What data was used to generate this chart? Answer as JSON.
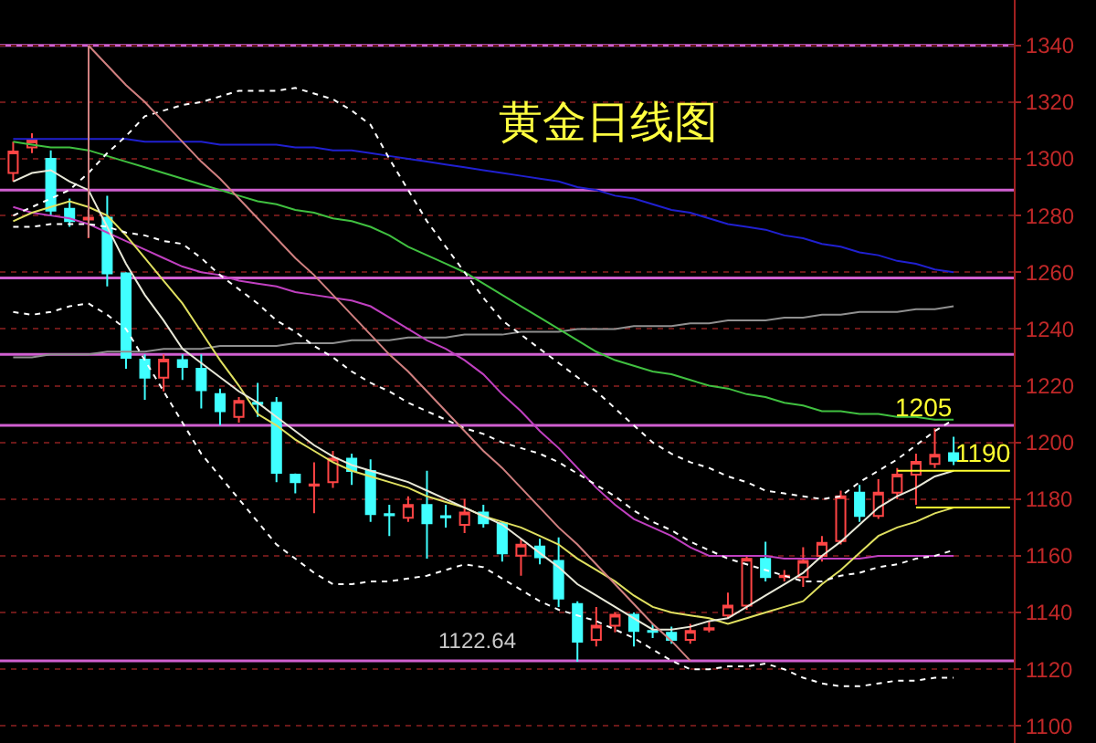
{
  "chart_data": {
    "type": "candlestick",
    "title": "黄金日线图",
    "categories": [
      null,
      null,
      null,
      null,
      null,
      null,
      null,
      null,
      null,
      null,
      null,
      null,
      null,
      null,
      null,
      null,
      null,
      null,
      null,
      null,
      null,
      null,
      null,
      null,
      null,
      null,
      null,
      null,
      null,
      null,
      null,
      null,
      null,
      null,
      null,
      null,
      null,
      null,
      null,
      null,
      null,
      null,
      null,
      null,
      null,
      null,
      null,
      null,
      null,
      null,
      null,
      null,
      null,
      null
    ],
    "ohlc": [
      [
        1295,
        1306,
        1292,
        1302.6
      ],
      [
        1304,
        1309,
        1302,
        1306.4
      ],
      [
        1300,
        1303,
        1280,
        1281.7
      ],
      [
        1282.4,
        1286,
        1276,
        1278
      ],
      [
        1278.6,
        1282,
        1272,
        1279.2
      ],
      [
        1279.2,
        1287,
        1255,
        1259.6
      ],
      [
        1259.6,
        1260,
        1226,
        1229.8
      ],
      [
        1229.2,
        1231,
        1215,
        1222.8
      ],
      [
        1222.8,
        1231,
        1218,
        1229.2
      ],
      [
        1229,
        1231,
        1222,
        1226.6
      ],
      [
        1226,
        1231,
        1212,
        1218.4
      ],
      [
        1217,
        1219,
        1206,
        1211
      ],
      [
        1209,
        1216,
        1207,
        1214.6
      ],
      [
        1214,
        1221,
        1209,
        1213.6
      ],
      [
        1214,
        1216,
        1186,
        1189.3
      ],
      [
        1188.6,
        1189,
        1182,
        1186
      ],
      [
        1184.8,
        1193,
        1175,
        1185.2
      ],
      [
        1186,
        1197,
        1184,
        1194.3
      ],
      [
        1194.3,
        1196,
        1185,
        1189.9
      ],
      [
        1189.9,
        1194,
        1172,
        1174.7
      ],
      [
        1174.7,
        1178,
        1167,
        1174.3
      ],
      [
        1173.4,
        1181,
        1172,
        1177.9
      ],
      [
        1177.9,
        1190,
        1159,
        1171.5
      ],
      [
        1174,
        1178,
        1170,
        1173.6
      ],
      [
        1170.9,
        1180,
        1168,
        1175.3
      ],
      [
        1175.3,
        1178,
        1170,
        1171.5
      ],
      [
        1171.5,
        1172,
        1158,
        1160.9
      ],
      [
        1160.1,
        1166,
        1153,
        1163.9
      ],
      [
        1163.3,
        1166,
        1157,
        1159.5
      ],
      [
        1158.2,
        1166.5,
        1142,
        1144.9
      ],
      [
        1143,
        1144,
        1122.64,
        1129.7
      ],
      [
        1130.4,
        1142,
        1128,
        1135.4
      ],
      [
        1135.4,
        1140,
        1133,
        1139.2
      ],
      [
        1139.2,
        1140,
        1128,
        1133.5
      ],
      [
        1133.5,
        1136,
        1131,
        1133.2
      ],
      [
        1132.9,
        1135,
        1129,
        1130.4
      ],
      [
        1130.4,
        1136,
        1129,
        1133.5
      ],
      [
        1134,
        1137,
        1133,
        1134.5
      ],
      [
        1139,
        1147,
        1138,
        1142.4
      ],
      [
        1142.4,
        1160,
        1141,
        1158.9
      ],
      [
        1158.9,
        1165,
        1151,
        1152.5
      ],
      [
        1152.5,
        1155,
        1151,
        1153
      ],
      [
        1152.5,
        1163,
        1149,
        1158.2
      ],
      [
        1160,
        1167,
        1158,
        1164.6
      ],
      [
        1165.2,
        1183,
        1164,
        1181
      ],
      [
        1182.3,
        1185,
        1172,
        1174.1
      ],
      [
        1174.1,
        1187,
        1173,
        1182.3
      ],
      [
        1182.3,
        1191,
        1180,
        1188.6
      ],
      [
        1188.6,
        1196,
        1178,
        1193.1
      ],
      [
        1192.4,
        1205,
        1191,
        1195.6
      ],
      [
        1196.2,
        1202,
        1192,
        1193.5
      ],
      null,
      null,
      null
    ],
    "series": [
      {
        "type": "line",
        "color": "#2020d0",
        "values": [
          1307,
          1307,
          1307,
          1307,
          1307,
          1307,
          1307,
          1306,
          1306,
          1306,
          1306,
          1305,
          1305,
          1305,
          1305,
          1304,
          1304,
          1303,
          1303,
          1302,
          1301,
          1300,
          1299,
          1298,
          1297,
          1296,
          1295,
          1294,
          1293,
          1292,
          1290,
          1289,
          1287,
          1286,
          1284,
          1282,
          1281,
          1279,
          1277,
          1276,
          1275,
          1273,
          1272,
          1270,
          1269,
          1267,
          1266,
          1264,
          1263,
          1261,
          1260,
          null,
          null,
          null
        ]
      },
      {
        "type": "line",
        "color": "#909090",
        "values": [
          1230,
          1230,
          1231,
          1231,
          1231,
          1232,
          1232,
          1232,
          1233,
          1233,
          1233,
          1234,
          1234,
          1234,
          1234,
          1235,
          1235,
          1235,
          1236,
          1236,
          1236,
          1237,
          1237,
          1237,
          1238,
          1238,
          1238,
          1239,
          1239,
          1239,
          1240,
          1240,
          1240,
          1241,
          1241,
          1241,
          1242,
          1242,
          1243,
          1243,
          1243,
          1244,
          1244,
          1245,
          1245,
          1246,
          1246,
          1246,
          1247,
          1247,
          1248,
          null,
          null,
          null
        ]
      },
      {
        "type": "line",
        "color": "#40c040",
        "values": [
          1306,
          1305,
          1304,
          1304,
          1303,
          1301,
          1299,
          1297,
          1295,
          1293,
          1291,
          1289,
          1287,
          1285,
          1284,
          1282,
          1281,
          1279,
          1278,
          1276,
          1273,
          1269,
          1266,
          1263,
          1260,
          1256,
          1252,
          1248,
          1244,
          1240,
          1236,
          1232,
          1229,
          1227,
          1225,
          1224,
          1222,
          1220,
          1219,
          1217,
          1216,
          1214,
          1213,
          1211,
          1211,
          1210,
          1210,
          1209,
          1209,
          1208,
          1208,
          null,
          null,
          null
        ]
      },
      {
        "type": "line",
        "color": "#c040c0",
        "values": [
          1283,
          1281,
          1280,
          1279,
          1277,
          1274,
          1271,
          1268,
          1265,
          1262,
          1260,
          1259,
          1257,
          1256,
          1255,
          1253,
          1252,
          1251,
          1250,
          1248,
          1244,
          1240,
          1236,
          1233,
          1229,
          1224,
          1217,
          1211,
          1204,
          1198,
          1191,
          1184,
          1178,
          1173,
          1170,
          1167,
          1163,
          1160,
          1160,
          1160,
          1160,
          1159,
          1159,
          1159,
          1159,
          1159,
          1160,
          1160,
          1160,
          1160,
          1160,
          null,
          null,
          null
        ]
      },
      {
        "type": "line",
        "color": "#e0e060",
        "values": [
          1278,
          1281,
          1283,
          1285,
          1283,
          1280,
          1273,
          1265,
          1257,
          1249,
          1239,
          1229,
          1220,
          1210,
          1206,
          1201,
          1197,
          1193,
          1190,
          1188,
          1186,
          1184,
          1181,
          1179,
          1177,
          1174,
          1172,
          1170,
          1167,
          1164,
          1159,
          1155,
          1151,
          1146,
          1142,
          1140,
          1139,
          1138,
          1136,
          1138,
          1140,
          1142,
          1144,
          1150,
          1155,
          1161,
          1167,
          1170,
          1172,
          1175,
          1177,
          null,
          null,
          null
        ]
      },
      {
        "type": "line",
        "color": "#e8e8d8",
        "values": [
          1292,
          1295,
          1296,
          1292,
          1289,
          1276,
          1263,
          1252,
          1243,
          1233,
          1228,
          1223,
          1218,
          1214,
          1209,
          1204,
          1199,
          1195,
          1192,
          1190,
          1188,
          1186,
          1183,
          1180,
          1177,
          1174,
          1171,
          1166,
          1161,
          1156,
          1150,
          1146,
          1142,
          1138,
          1134,
          1134,
          1135,
          1137,
          1138,
          1142,
          1146,
          1150,
          1154,
          1160,
          1165,
          1171,
          1177,
          1181,
          1184,
          1188,
          1190,
          null,
          null,
          null
        ]
      },
      {
        "type": "line",
        "color": "#ffffff",
        "line_style": "dashed",
        "values": [
          1280,
          1283,
          1286,
          1289,
          1295,
          1302,
          1308,
          1315,
          1317,
          1319,
          1320,
          1322,
          1324,
          1324,
          1324,
          1325,
          1323,
          1321,
          1317,
          1312,
          1300,
          1289,
          1278,
          1269,
          1260,
          1251,
          1243,
          1238,
          1233,
          1228,
          1223,
          1218,
          1212,
          1206,
          1200,
          1196,
          1193,
          1191,
          1188,
          1186,
          1183,
          1182,
          1181,
          1180,
          1181,
          1186,
          1190,
          1194,
          1199,
          1204,
          1208,
          null,
          null,
          null
        ]
      },
      {
        "type": "line",
        "color": "#ffffff",
        "line_style": "dashed",
        "values": [
          1276,
          1276,
          1277,
          1277,
          1277,
          1276,
          1274,
          1273,
          1271,
          1270,
          1265,
          1259,
          1254,
          1249,
          1243,
          1239,
          1234,
          1230,
          1225,
          1221,
          1218,
          1214,
          1211,
          1208,
          1205,
          1203,
          1200,
          1198,
          1196,
          1193,
          1189,
          1185,
          1181,
          1176,
          1172,
          1169,
          1165,
          1162,
          1159,
          1157,
          1155,
          1153,
          1151,
          1151,
          1153,
          1154,
          1156,
          1157,
          1159,
          1160,
          1162,
          null,
          null,
          null
        ]
      },
      {
        "type": "line",
        "color": "#ffffff",
        "line_style": "dashed",
        "values": [
          1246,
          1245,
          1246,
          1248,
          1249,
          1245,
          1240,
          1229,
          1218,
          1207,
          1196,
          1188,
          1180,
          1172,
          1164,
          1159,
          1154,
          1150,
          1150,
          1151,
          1151,
          1152,
          1153,
          1155,
          1157,
          1156,
          1152,
          1148,
          1144,
          1141,
          1139,
          1137,
          1134,
          1131,
          1127,
          1123,
          1120,
          1120,
          1121,
          1121,
          1122,
          1120,
          1117,
          1115,
          1114,
          1114,
          1115,
          1116,
          1116,
          1117,
          1117,
          null,
          null,
          null
        ]
      },
      {
        "type": "line",
        "color": "#d08080",
        "values": [
          null,
          null,
          null,
          null,
          1340,
          1333,
          1326,
          1320,
          1313,
          1306,
          1299,
          1293,
          1286,
          1279,
          1272,
          1265,
          1259,
          1252,
          1245,
          1238,
          1231,
          1225,
          1218,
          1211,
          1204,
          1197,
          1191,
          1184,
          1177,
          1170,
          1164,
          1157,
          1150,
          1143,
          1136,
          1130,
          1123,
          null,
          null,
          null,
          null,
          null,
          null,
          null,
          null,
          null,
          null,
          null,
          null,
          null,
          null,
          null,
          null,
          null
        ]
      },
      {
        "type": "line",
        "color": "#ffff30",
        "name": "1190",
        "values": [
          null,
          null,
          null,
          null,
          null,
          null,
          null,
          null,
          null,
          null,
          null,
          null,
          null,
          null,
          null,
          null,
          null,
          null,
          null,
          null,
          null,
          null,
          null,
          null,
          null,
          null,
          null,
          null,
          null,
          null,
          null,
          null,
          null,
          null,
          null,
          null,
          null,
          null,
          null,
          null,
          null,
          null,
          null,
          null,
          null,
          null,
          null,
          1190,
          1190,
          1190,
          1190,
          1190,
          1190,
          1190
        ]
      },
      {
        "type": "line",
        "color": "#ffff30",
        "values": [
          null,
          null,
          null,
          null,
          null,
          null,
          null,
          null,
          null,
          null,
          null,
          null,
          null,
          null,
          null,
          null,
          null,
          null,
          null,
          null,
          null,
          null,
          null,
          null,
          null,
          null,
          null,
          null,
          null,
          null,
          null,
          null,
          null,
          null,
          null,
          null,
          null,
          null,
          null,
          null,
          null,
          null,
          null,
          null,
          null,
          null,
          null,
          null,
          1177,
          1177,
          1177,
          1177,
          1177,
          1177
        ]
      }
    ],
    "ylim": [
      1094,
      1356
    ],
    "yticks": [
      1100,
      1120,
      1140,
      1160,
      1180,
      1200,
      1220,
      1240,
      1260,
      1280,
      1300,
      1320,
      1340
    ],
    "grid": "y",
    "tick_labels": "y",
    "ref_lines": [
      {
        "axis": "y",
        "value": 1340,
        "color": "#d060d0"
      },
      {
        "axis": "y",
        "value": 1289,
        "color": "#d060d0"
      },
      {
        "axis": "y",
        "value": 1258,
        "color": "#d060d0"
      },
      {
        "axis": "y",
        "value": 1231,
        "color": "#d060d0"
      },
      {
        "axis": "y",
        "value": 1206,
        "color": "#d060d0"
      },
      {
        "axis": "y",
        "value": 1123,
        "color": "#d060d0"
      }
    ],
    "annotations": [
      {
        "text": "1122.64",
        "y": 1122.64
      },
      {
        "text": "1205",
        "y": 1205
      }
    ]
  }
}
